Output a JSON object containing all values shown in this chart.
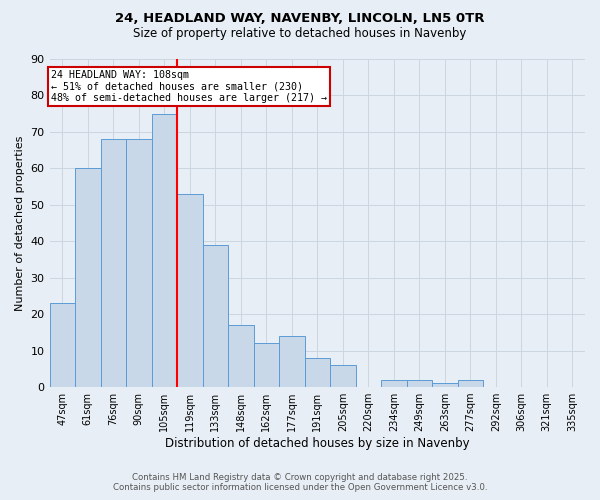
{
  "title1": "24, HEADLAND WAY, NAVENBY, LINCOLN, LN5 0TR",
  "title2": "Size of property relative to detached houses in Navenby",
  "xlabel": "Distribution of detached houses by size in Navenby",
  "ylabel": "Number of detached properties",
  "categories": [
    "47sqm",
    "61sqm",
    "76sqm",
    "90sqm",
    "105sqm",
    "119sqm",
    "133sqm",
    "148sqm",
    "162sqm",
    "177sqm",
    "191sqm",
    "205sqm",
    "220sqm",
    "234sqm",
    "249sqm",
    "263sqm",
    "277sqm",
    "292sqm",
    "306sqm",
    "321sqm",
    "335sqm"
  ],
  "values": [
    23,
    60,
    68,
    68,
    75,
    53,
    39,
    17,
    12,
    14,
    8,
    6,
    0,
    2,
    2,
    1,
    2,
    0,
    0,
    0,
    0
  ],
  "bar_color": "#c8d8e8",
  "bar_edge_color": "#5b9bd5",
  "red_line_x": 4.5,
  "annotation_line1": "24 HEADLAND WAY: 108sqm",
  "annotation_line2": "← 51% of detached houses are smaller (230)",
  "annotation_line3": "48% of semi-detached houses are larger (217) →",
  "annotation_box_color": "#ffffff",
  "annotation_box_edge": "#cc0000",
  "grid_color": "#ccd6e0",
  "background_color": "#e8eef5",
  "ylim": [
    0,
    90
  ],
  "yticks": [
    0,
    10,
    20,
    30,
    40,
    50,
    60,
    70,
    80,
    90
  ],
  "footer1": "Contains HM Land Registry data © Crown copyright and database right 2025.",
  "footer2": "Contains public sector information licensed under the Open Government Licence v3.0."
}
